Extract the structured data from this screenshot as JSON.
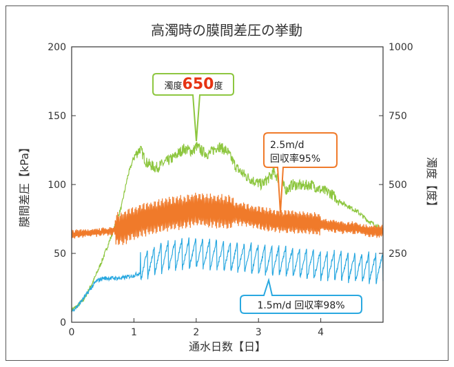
{
  "chart_data": {
    "type": "line",
    "title": "高濁時の膜間差圧の挙動",
    "xlabel": "通水日数【日】",
    "ylabel_left": "膜間差圧【kPa】",
    "ylabel_right": "濁度【度】",
    "xlim": [
      0,
      5
    ],
    "ylim_left": [
      0,
      200
    ],
    "ylim_right": [
      0,
      1000
    ],
    "x_ticks": [
      "0",
      "1",
      "2",
      "3",
      "4"
    ],
    "y_left_ticks": [
      "0",
      "50",
      "100",
      "150",
      "200"
    ],
    "y_right_ticks": [
      "250",
      "500",
      "750",
      "1000"
    ],
    "grid": false,
    "series": [
      {
        "name": "濁度",
        "axis": "right",
        "color": "#8dc63f",
        "x": [
          0,
          0.1,
          0.2,
          0.35,
          0.5,
          0.65,
          0.8,
          0.9,
          1.0,
          1.1,
          1.2,
          1.35,
          1.5,
          1.65,
          1.8,
          1.95,
          2.0,
          2.1,
          2.2,
          2.35,
          2.5,
          2.65,
          2.8,
          2.95,
          3.05,
          3.15,
          3.25,
          3.35,
          3.45,
          3.55,
          3.7,
          3.85,
          4.0,
          4.15,
          4.3,
          4.45,
          4.6,
          4.75,
          4.9,
          5.0
        ],
        "y": [
          45,
          60,
          85,
          150,
          230,
          320,
          420,
          530,
          600,
          630,
          580,
          560,
          580,
          600,
          630,
          620,
          640,
          620,
          610,
          640,
          620,
          560,
          530,
          510,
          500,
          520,
          545,
          510,
          480,
          500,
          495,
          500,
          480,
          470,
          440,
          420,
          400,
          370,
          350,
          330
        ]
      },
      {
        "name": "2.5m/d 回収率95%",
        "axis": "left",
        "color": "#f07a2a",
        "x": [
          0,
          0.3,
          0.6,
          0.8,
          1.0,
          1.2,
          1.5,
          1.8,
          2.0,
          2.2,
          2.5,
          2.8,
          3.0,
          3.2,
          3.5,
          3.8,
          4.0,
          4.3,
          4.6,
          4.8,
          5.0
        ],
        "y": [
          64,
          65,
          66,
          68,
          72,
          75,
          78,
          80,
          82,
          81,
          80,
          78,
          76,
          74,
          73,
          72,
          71,
          69,
          68,
          66,
          66
        ]
      },
      {
        "name": "1.5m/d 回収率98%",
        "axis": "left",
        "color": "#29a8e0",
        "x": [
          0,
          0.1,
          0.2,
          0.3,
          0.4,
          0.45,
          0.5,
          0.6,
          0.8,
          1.0,
          1.2,
          1.4,
          1.6,
          1.8,
          2.0,
          2.2,
          2.4,
          2.6,
          2.8,
          3.0,
          3.2,
          3.4,
          3.6,
          3.8,
          4.0,
          4.2,
          4.4,
          4.6,
          4.8,
          5.0
        ],
        "y": [
          8,
          12,
          18,
          24,
          30,
          31,
          32,
          32,
          32,
          34,
          38,
          42,
          44,
          45,
          46,
          45,
          44,
          43,
          42,
          41,
          40,
          40,
          39,
          38,
          37,
          37,
          36,
          35,
          35,
          35
        ]
      }
    ],
    "annotations": [
      {
        "prefix": "濁度",
        "value": "650",
        "suffix": "度",
        "color": "#8dc63f",
        "value_color": "#e63312"
      },
      {
        "lines": [
          "2.5m/d",
          "回収率95%"
        ],
        "color": "#f07a2a"
      },
      {
        "text": "1.5m/d 回収率98%",
        "color": "#29a8e0"
      }
    ]
  }
}
